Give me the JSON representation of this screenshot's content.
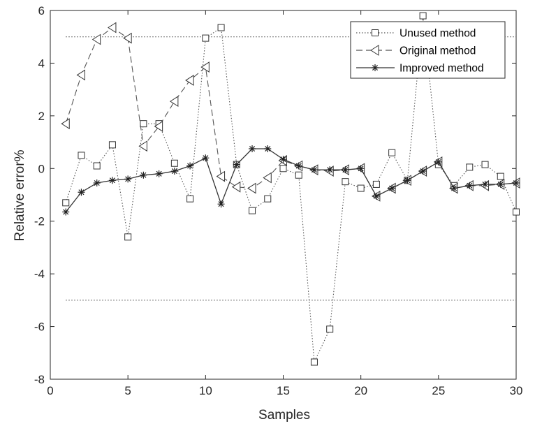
{
  "chart_data": {
    "type": "line",
    "xlabel": "Samples",
    "ylabel": "Relative error%",
    "xlim": [
      0,
      30
    ],
    "ylim": [
      -8,
      6
    ],
    "xticks": [
      0,
      5,
      10,
      15,
      20,
      25,
      30
    ],
    "yticks": [
      -8,
      -6,
      -4,
      -2,
      0,
      2,
      4,
      6
    ],
    "grid": false,
    "legend_position": "top-right",
    "reference_lines": [
      5,
      -5
    ],
    "series": [
      {
        "name": "Unused method",
        "line_style": "dotted",
        "marker": "square",
        "x": [
          1,
          2,
          3,
          4,
          5,
          6,
          7,
          8,
          9,
          10,
          11,
          12,
          13,
          14,
          15,
          16,
          17,
          18,
          19,
          20,
          21,
          22,
          23,
          24,
          25,
          26,
          27,
          28,
          29,
          30
        ],
        "y": [
          -1.3,
          0.5,
          0.1,
          0.9,
          -2.6,
          1.7,
          1.7,
          0.2,
          -1.15,
          4.95,
          5.35,
          0.15,
          -1.6,
          -1.15,
          0.0,
          -0.25,
          -7.35,
          -6.1,
          -0.5,
          -0.75,
          -0.6,
          0.6,
          -0.45,
          5.8,
          0.15,
          -0.65,
          0.05,
          0.15,
          -0.3,
          -1.65
        ]
      },
      {
        "name": "Original method",
        "line_style": "dashed",
        "marker": "left-triangle",
        "x": [
          1,
          2,
          3,
          4,
          5,
          6,
          7,
          8,
          9,
          10,
          11,
          12,
          13,
          14,
          15,
          16,
          17,
          18,
          19,
          20,
          21,
          22,
          23,
          24,
          25,
          26,
          27,
          28,
          29,
          30
        ],
        "y": [
          1.7,
          3.55,
          4.9,
          5.35,
          4.95,
          0.85,
          1.6,
          2.55,
          3.35,
          3.85,
          -0.3,
          -0.7,
          -0.75,
          -0.35,
          0.3,
          0.1,
          -0.05,
          -0.1,
          -0.05,
          0.0,
          -1.05,
          -0.75,
          -0.45,
          -0.1,
          0.25,
          -0.75,
          -0.65,
          -0.65,
          -0.6,
          -0.55
        ]
      },
      {
        "name": "Improved method",
        "line_style": "solid",
        "marker": "asterisk",
        "x": [
          1,
          2,
          3,
          4,
          5,
          6,
          7,
          8,
          9,
          10,
          11,
          12,
          13,
          14,
          15,
          16,
          17,
          18,
          19,
          20,
          21,
          22,
          23,
          24,
          25,
          26,
          27,
          28,
          29,
          30
        ],
        "y": [
          -1.65,
          -0.9,
          -0.55,
          -0.45,
          -0.4,
          -0.25,
          -0.2,
          -0.1,
          0.1,
          0.4,
          -1.35,
          0.15,
          0.75,
          0.75,
          0.35,
          0.1,
          -0.05,
          -0.05,
          -0.05,
          0.0,
          -1.05,
          -0.75,
          -0.45,
          -0.1,
          0.25,
          -0.75,
          -0.65,
          -0.6,
          -0.6,
          -0.55
        ]
      }
    ]
  }
}
